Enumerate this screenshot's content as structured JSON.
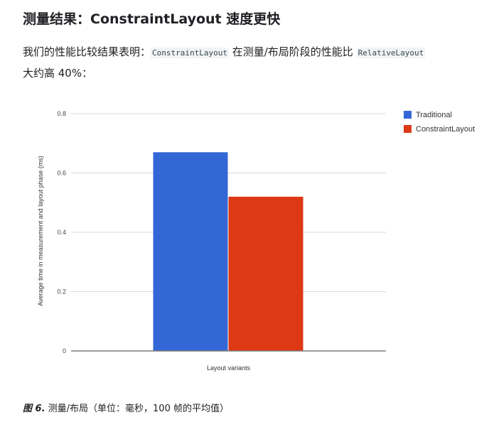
{
  "heading": "测量结果：ConstraintLayout 速度更快",
  "paragraph": {
    "part1": "我们的性能比较结果表明：",
    "code1": "ConstraintLayout",
    "part2": " 在测量/布局阶段的性能比 ",
    "code2": "RelativeLayout",
    "part3": " 大约高 40%："
  },
  "chart_data": {
    "type": "bar",
    "categories": [
      ""
    ],
    "series": [
      {
        "name": "Traditional",
        "color": "#3367d6",
        "values": [
          0.67
        ]
      },
      {
        "name": "ConstraintLayout",
        "color": "#dd3914",
        "values": [
          0.52
        ]
      }
    ],
    "xlabel": "Layout variants",
    "ylabel": "Average time in measurement and layout phase (ms)",
    "ylim": [
      0,
      0.8
    ],
    "yticks": [
      "0",
      "0.2",
      "0.4",
      "0.6",
      "0.8"
    ],
    "grid": true,
    "legend_position": "right"
  },
  "caption": {
    "label": "图 6.",
    "text": " 测量/布局（单位：毫秒，100 帧的平均值）"
  }
}
